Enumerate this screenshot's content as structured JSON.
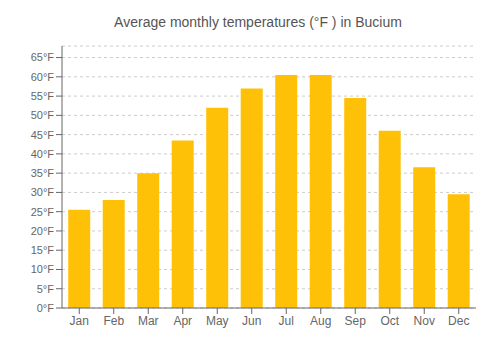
{
  "chart_data": {
    "type": "bar",
    "title": "Average monthly temperatures (°F ) in Bucium",
    "categories": [
      "Jan",
      "Feb",
      "Mar",
      "Apr",
      "May",
      "Jun",
      "Jul",
      "Aug",
      "Sep",
      "Oct",
      "Nov",
      "Dec"
    ],
    "values": [
      25.5,
      28.0,
      35.0,
      43.5,
      52.0,
      57.0,
      60.5,
      60.5,
      54.5,
      46.0,
      36.5,
      29.5
    ],
    "color": "#FFC107",
    "ylim": [
      0,
      68
    ],
    "yticks": [
      {
        "value": 0,
        "label": "0°F"
      },
      {
        "value": 5,
        "label": "5°F"
      },
      {
        "value": 10,
        "label": "10°F"
      },
      {
        "value": 15,
        "label": "15°F"
      },
      {
        "value": 20,
        "label": "20°F"
      },
      {
        "value": 25,
        "label": "25°F"
      },
      {
        "value": 30,
        "label": "30°F"
      },
      {
        "value": 35,
        "label": "35°F"
      },
      {
        "value": 40,
        "label": "40°F"
      },
      {
        "value": 45,
        "label": "45°F"
      },
      {
        "value": 50,
        "label": "50°F"
      },
      {
        "value": 55,
        "label": "55°F"
      },
      {
        "value": 60,
        "label": "60°F"
      },
      {
        "value": 65,
        "label": "65°F"
      }
    ],
    "grid": true
  }
}
